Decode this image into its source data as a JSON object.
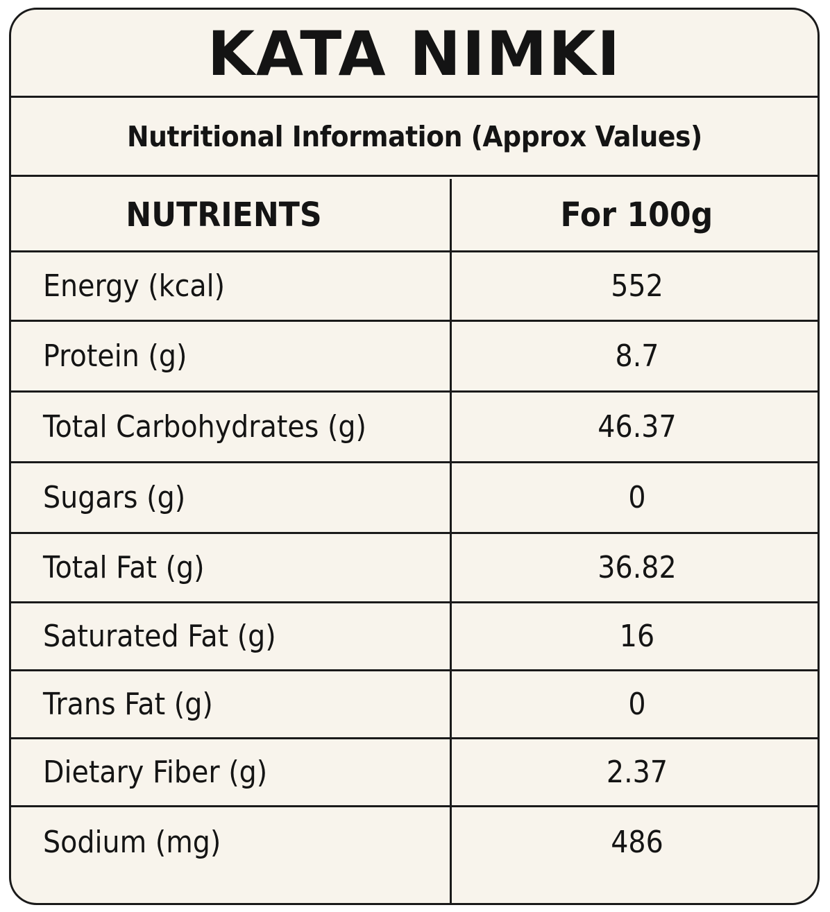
{
  "title": "KATA NIMKI",
  "subtitle": "Nutritional Information (Approx Values)",
  "table": {
    "headers": {
      "nutrient": "NUTRIENTS",
      "value": "For 100g"
    },
    "rows": [
      {
        "nutrient": "Energy (kcal)",
        "value": "552"
      },
      {
        "nutrient": "Protein (g)",
        "value": "8.7"
      },
      {
        "nutrient": "Total Carbohydrates (g)",
        "value": "46.37"
      },
      {
        "nutrient": "Sugars (g)",
        "value": "0"
      },
      {
        "nutrient": "Total Fat (g)",
        "value": "36.82"
      },
      {
        "nutrient": "Saturated Fat (g)",
        "value": "16"
      },
      {
        "nutrient": "Trans Fat (g)",
        "value": "0"
      },
      {
        "nutrient": "Dietary Fiber (g)",
        "value": "2.37"
      },
      {
        "nutrient": "Sodium (mg)",
        "value": "486"
      }
    ]
  }
}
